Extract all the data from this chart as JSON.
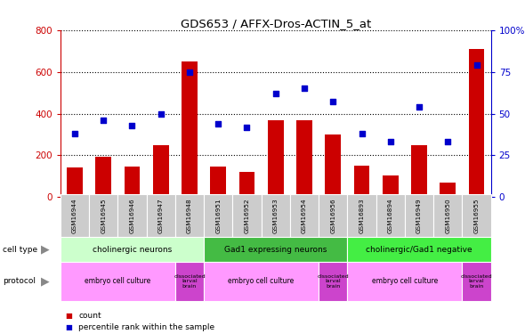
{
  "title": "GDS653 / AFFX-Dros-ACTIN_5_at",
  "samples": [
    "GSM16944",
    "GSM16945",
    "GSM16946",
    "GSM16947",
    "GSM16948",
    "GSM16951",
    "GSM16952",
    "GSM16953",
    "GSM16954",
    "GSM16956",
    "GSM16893",
    "GSM16894",
    "GSM16949",
    "GSM16950",
    "GSM16955"
  ],
  "counts": [
    140,
    195,
    148,
    248,
    648,
    148,
    122,
    370,
    370,
    300,
    152,
    105,
    248,
    70,
    710
  ],
  "percentile_ranks": [
    38,
    46,
    43,
    50,
    75,
    44,
    42,
    62,
    65,
    57,
    38,
    33,
    54,
    33,
    79
  ],
  "ylim_left": [
    0,
    800
  ],
  "ylim_right": [
    0,
    100
  ],
  "yticks_left": [
    0,
    200,
    400,
    600,
    800
  ],
  "yticks_right": [
    0,
    25,
    50,
    75,
    100
  ],
  "bar_color": "#cc0000",
  "dot_color": "#0000cc",
  "cell_type_groups": [
    {
      "label": "cholinergic neurons",
      "start": 0,
      "end": 4
    },
    {
      "label": "Gad1 expressing neurons",
      "start": 5,
      "end": 9
    },
    {
      "label": "cholinergic/Gad1 negative",
      "start": 10,
      "end": 14
    }
  ],
  "cell_type_colors": [
    "#ccffcc",
    "#44bb44",
    "#44ee44"
  ],
  "protocol_groups": [
    {
      "label": "embryo cell culture",
      "start": 0,
      "end": 3
    },
    {
      "label": "dissociated\nlarval\nbrain",
      "start": 4,
      "end": 4
    },
    {
      "label": "embryo cell culture",
      "start": 5,
      "end": 8
    },
    {
      "label": "dissociated\nlarval\nbrain",
      "start": 9,
      "end": 9
    },
    {
      "label": "embryo cell culture",
      "start": 10,
      "end": 13
    },
    {
      "label": "dissociated\nlarval\nbrain",
      "start": 14,
      "end": 14
    }
  ],
  "protocol_color_light": "#ff99ff",
  "protocol_color_dark": "#cc44cc",
  "bg_color": "#ffffff",
  "tick_bg": "#dddddd",
  "legend_items": [
    {
      "label": "count",
      "color": "#cc0000"
    },
    {
      "label": "percentile rank within the sample",
      "color": "#0000cc"
    }
  ]
}
